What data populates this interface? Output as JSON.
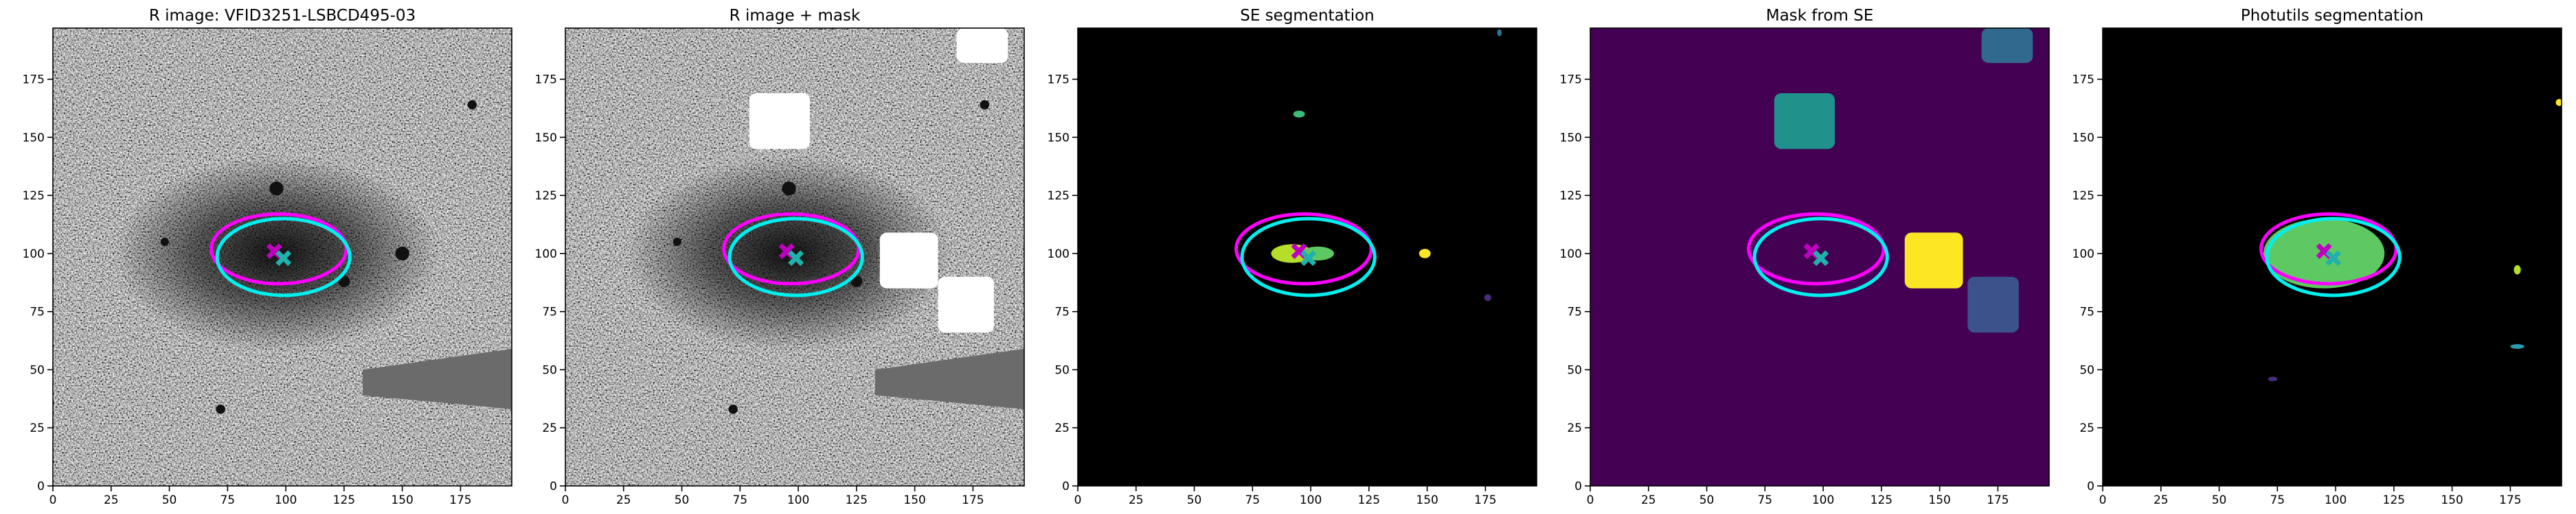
{
  "chart_data": [
    {
      "type": "image",
      "title": "R image: VFID3251-LSBCD495-03",
      "background": "grayscale-noise",
      "xlim": [
        0,
        197
      ],
      "ylim": [
        0,
        197
      ],
      "xticks": [
        0,
        25,
        50,
        75,
        100,
        125,
        150,
        175
      ],
      "yticks": [
        0,
        25,
        50,
        75,
        100,
        125,
        150,
        175
      ],
      "polygons": [
        {
          "color": "#6b6b6b",
          "x": [
            133,
            197,
            197,
            133
          ],
          "y": [
            39,
            33,
            59,
            50
          ]
        }
      ],
      "rects": [],
      "blobs": [],
      "ellipses": [
        {
          "color": "#ff00ff",
          "x": 97,
          "y": 102,
          "width": 58,
          "height": 30
        },
        {
          "color": "#00f0f0",
          "x": 99,
          "y": 98.5,
          "width": 57,
          "height": 33
        }
      ],
      "markers": [
        {
          "color": "#c000c0",
          "x": 95,
          "y": 101
        },
        {
          "color": "#20b2aa",
          "x": 99,
          "y": 98
        }
      ]
    },
    {
      "type": "image",
      "title": "R image + mask",
      "background": "grayscale-noise",
      "xlim": [
        0,
        197
      ],
      "ylim": [
        0,
        197
      ],
      "xticks": [
        0,
        25,
        50,
        75,
        100,
        125,
        150,
        175
      ],
      "yticks": [
        0,
        25,
        50,
        75,
        100,
        125,
        150,
        175
      ],
      "polygons": [
        {
          "color": "#6b6b6b",
          "x": [
            133,
            197,
            197,
            133
          ],
          "y": [
            39,
            33,
            59,
            50
          ]
        }
      ],
      "rects": [
        {
          "color": "#ffffff",
          "x0": 79,
          "x1": 105,
          "y0": 145,
          "y1": 169
        },
        {
          "color": "#ffffff",
          "x0": 135,
          "x1": 160,
          "y0": 85,
          "y1": 109
        },
        {
          "color": "#ffffff",
          "x0": 160,
          "x1": 184,
          "y0": 66,
          "y1": 90
        },
        {
          "color": "#ffffff",
          "x0": 168,
          "x1": 190,
          "y0": 182,
          "y1": 197
        }
      ],
      "blobs": [],
      "ellipses": [
        {
          "color": "#ff00ff",
          "x": 97,
          "y": 102,
          "width": 58,
          "height": 30
        },
        {
          "color": "#00f0f0",
          "x": 99,
          "y": 98.5,
          "width": 57,
          "height": 33
        }
      ],
      "markers": [
        {
          "color": "#c000c0",
          "x": 95,
          "y": 101
        },
        {
          "color": "#20b2aa",
          "x": 99,
          "y": 98
        }
      ]
    },
    {
      "type": "image",
      "title": "SE segmentation",
      "background": "#000000",
      "xlim": [
        0,
        197
      ],
      "ylim": [
        0,
        197
      ],
      "xticks": [
        0,
        25,
        50,
        75,
        100,
        125,
        150,
        175
      ],
      "yticks": [
        0,
        25,
        50,
        75,
        100,
        125,
        150,
        175
      ],
      "polygons": [],
      "rects": [],
      "blobs": [
        {
          "color": "#3bbb75",
          "x": 95,
          "y": 160,
          "width": 5,
          "height": 3
        },
        {
          "color": "#b5de2b",
          "x": 92,
          "y": 100,
          "width": 18,
          "height": 8
        },
        {
          "color": "#5ec962",
          "x": 103,
          "y": 100,
          "width": 14,
          "height": 6
        },
        {
          "color": "#fde725",
          "x": 149,
          "y": 100,
          "width": 5,
          "height": 4
        },
        {
          "color": "#472d7b",
          "x": 176,
          "y": 81,
          "width": 3,
          "height": 3
        },
        {
          "color": "#2c728e",
          "x": 181,
          "y": 195,
          "width": 2,
          "height": 3
        }
      ],
      "ellipses": [
        {
          "color": "#ff00ff",
          "x": 97,
          "y": 102,
          "width": 58,
          "height": 30
        },
        {
          "color": "#00f0f0",
          "x": 99,
          "y": 98.5,
          "width": 57,
          "height": 33
        }
      ],
      "markers": [
        {
          "color": "#c000c0",
          "x": 95,
          "y": 101
        },
        {
          "color": "#20b2aa",
          "x": 99,
          "y": 98
        }
      ]
    },
    {
      "type": "image",
      "title": "Mask from SE",
      "background": "#440154",
      "xlim": [
        0,
        197
      ],
      "ylim": [
        0,
        197
      ],
      "xticks": [
        0,
        25,
        50,
        75,
        100,
        125,
        150,
        175
      ],
      "yticks": [
        0,
        25,
        50,
        75,
        100,
        125,
        150,
        175
      ],
      "polygons": [],
      "rects": [
        {
          "color": "#21918c",
          "x0": 79,
          "x1": 105,
          "y0": 145,
          "y1": 169
        },
        {
          "color": "#fde725",
          "x0": 135,
          "x1": 160,
          "y0": 85,
          "y1": 109
        },
        {
          "color": "#3b528b",
          "x0": 162,
          "x1": 184,
          "y0": 66,
          "y1": 90
        },
        {
          "color": "#31688e",
          "x0": 168,
          "x1": 190,
          "y0": 182,
          "y1": 197
        }
      ],
      "blobs": [],
      "ellipses": [
        {
          "color": "#ff00ff",
          "x": 97,
          "y": 102,
          "width": 58,
          "height": 30
        },
        {
          "color": "#00f0f0",
          "x": 99,
          "y": 98.5,
          "width": 57,
          "height": 33
        }
      ],
      "markers": [
        {
          "color": "#c000c0",
          "x": 95,
          "y": 101
        },
        {
          "color": "#20b2aa",
          "x": 99,
          "y": 98
        }
      ]
    },
    {
      "type": "image",
      "title": "Photutils segmentation",
      "background": "#000000",
      "xlim": [
        0,
        197
      ],
      "ylim": [
        0,
        197
      ],
      "xticks": [
        0,
        25,
        50,
        75,
        100,
        125,
        150,
        175
      ],
      "yticks": [
        0,
        25,
        50,
        75,
        100,
        125,
        150,
        175
      ],
      "polygons": [],
      "rects": [],
      "blobs": [
        {
          "color": "#5ec962",
          "x": 95,
          "y": 100,
          "width": 52,
          "height": 30
        },
        {
          "color": "#b5de2b",
          "x": 178,
          "y": 93,
          "width": 3,
          "height": 4
        },
        {
          "color": "#2c9bb0",
          "x": 178,
          "y": 60,
          "width": 6,
          "height": 2
        },
        {
          "color": "#472d7b",
          "x": 73,
          "y": 46,
          "width": 4,
          "height": 2
        },
        {
          "color": "#fde725",
          "x": 196,
          "y": 165,
          "width": 3,
          "height": 3
        }
      ],
      "ellipses": [
        {
          "color": "#ff00ff",
          "x": 97,
          "y": 102,
          "width": 58,
          "height": 30
        },
        {
          "color": "#00f0f0",
          "x": 99,
          "y": 98.5,
          "width": 57,
          "height": 33
        }
      ],
      "markers": [
        {
          "color": "#c000c0",
          "x": 95,
          "y": 101
        },
        {
          "color": "#20b2aa",
          "x": 99,
          "y": 98
        }
      ]
    }
  ]
}
